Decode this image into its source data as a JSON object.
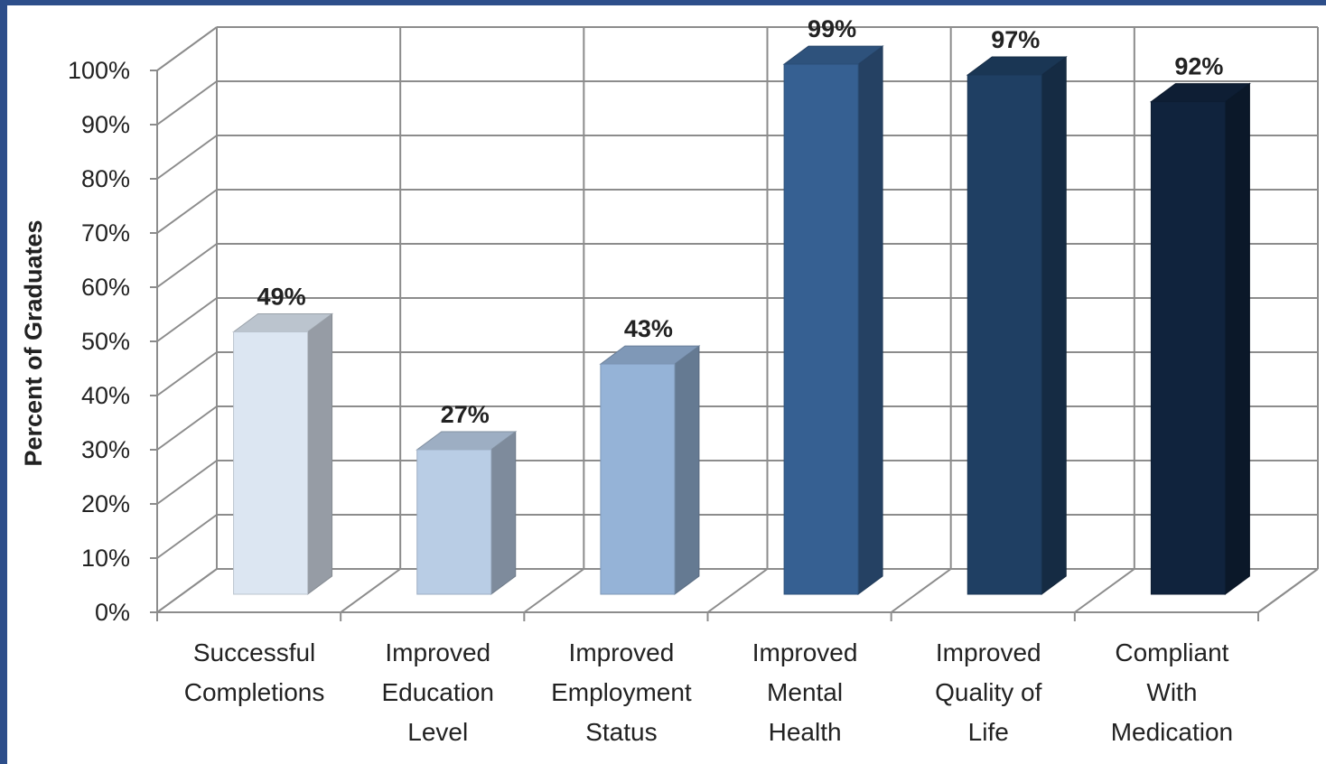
{
  "chart_data": {
    "type": "bar",
    "title": "",
    "xlabel": "",
    "ylabel": "Percent of Graduates",
    "ylim": [
      0,
      100
    ],
    "yticks": [
      "0%",
      "10%",
      "20%",
      "30%",
      "40%",
      "50%",
      "60%",
      "70%",
      "80%",
      "90%",
      "100%"
    ],
    "categories": [
      [
        "Successful",
        "Completions"
      ],
      [
        "Improved",
        "Education",
        "Level"
      ],
      [
        "Improved",
        "Employment",
        "Status"
      ],
      [
        "Improved",
        "Mental",
        "Health"
      ],
      [
        "Improved",
        "Quality of",
        "Life"
      ],
      [
        "Compliant",
        "With",
        "Medication"
      ]
    ],
    "values": [
      49,
      27,
      43,
      99,
      97,
      92
    ],
    "data_labels": [
      "49%",
      "27%",
      "43%",
      "99%",
      "97%",
      "92%"
    ],
    "bar_colors": [
      "#dce6f2",
      "#b9cde5",
      "#95b3d7",
      "#366092",
      "#1f3f63",
      "#10233d"
    ],
    "grid": true,
    "style": "3d-column",
    "frame_color": "#2d4e8a"
  }
}
